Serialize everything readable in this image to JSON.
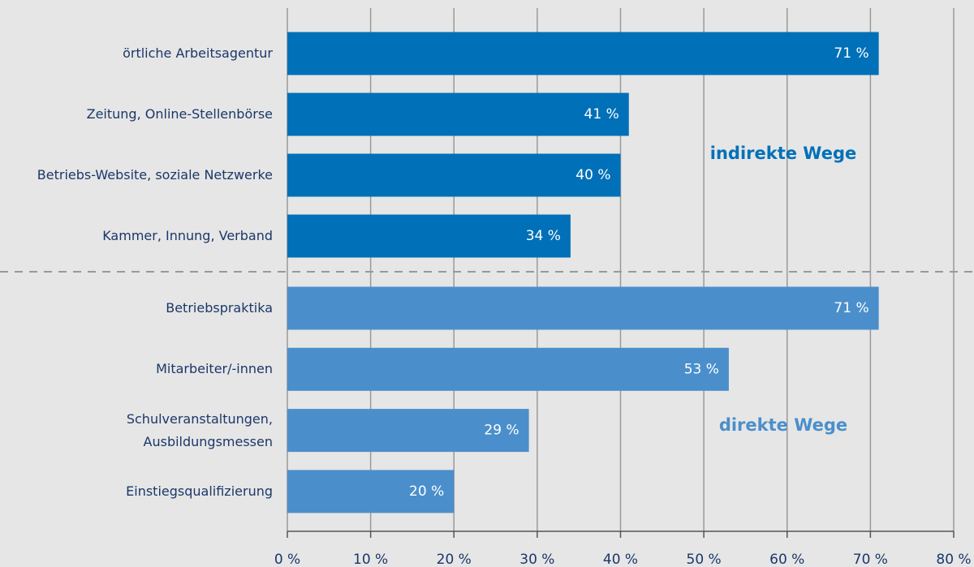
{
  "chart_data": {
    "type": "bar",
    "orientation": "horizontal",
    "categories": [
      "örtliche Arbeitsagentur",
      "Zeitung, Online-Stellenbörse",
      "Betriebs-Website,  soziale Netzwerke",
      "Kammer, Innung, Verband",
      "Betriebspraktika",
      "Mitarbeiter/-innen",
      "Schulveranstaltungen,\nAusbildungsmessen",
      "Einstiegsqualifizierung"
    ],
    "values": [
      71,
      41,
      40,
      34,
      71,
      53,
      29,
      20
    ],
    "value_labels": [
      "71 %",
      "41 %",
      "40 %",
      "34 %",
      "71 %",
      "53 %",
      "29 %",
      "20 %"
    ],
    "colors": [
      "#0070b8",
      "#0070b8",
      "#0070b8",
      "#0070b8",
      "#4a8fcb",
      "#4a8fcb",
      "#4a8fcb",
      "#4a8fcb"
    ],
    "xlim": [
      0,
      80
    ],
    "xticks": [
      {
        "value": 0,
        "label": "0 %"
      },
      {
        "value": 10,
        "label": "10 %"
      },
      {
        "value": 20,
        "label": "20 %"
      },
      {
        "value": 30,
        "label": "30 %"
      },
      {
        "value": 40,
        "label": "40 %"
      },
      {
        "value": 50,
        "label": "50 %"
      },
      {
        "value": 60,
        "label": "60 %"
      },
      {
        "value": 70,
        "label": "70 %"
      },
      {
        "value": 80,
        "label": "80 %"
      }
    ],
    "grid": true,
    "annotations": [
      {
        "text": "indirekte Wege",
        "color": "#0070b8"
      },
      {
        "text": "direkte Wege",
        "color": "#4a8fcb"
      }
    ]
  }
}
